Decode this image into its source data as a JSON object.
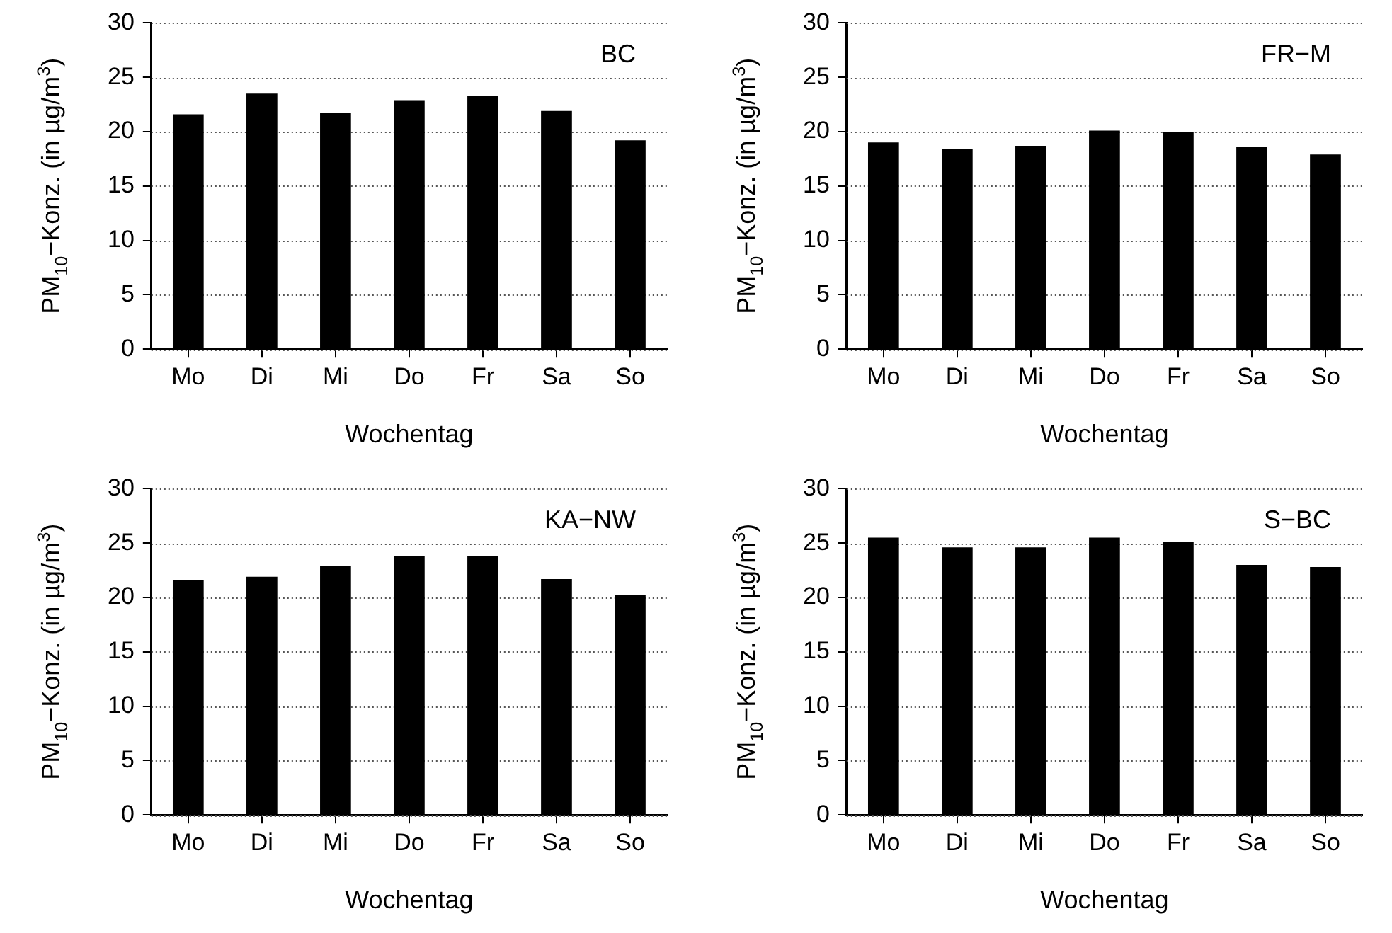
{
  "chart_data": [
    {
      "type": "bar",
      "categories": [
        "Mo",
        "Di",
        "Mi",
        "Do",
        "Fr",
        "Sa",
        "So"
      ],
      "values": [
        21.6,
        23.5,
        21.7,
        22.9,
        23.3,
        21.9,
        19.2
      ],
      "color": "#000000",
      "xlabel": "Wochentag",
      "ylabel": "PM$_{10}$−Konz. (in µg/m$^{3}$)",
      "ylim": [
        0,
        30
      ],
      "yticks": [
        0,
        5,
        10,
        15,
        20,
        25,
        30
      ],
      "grid": "y",
      "legend": false,
      "annotations": [
        "BC"
      ]
    },
    {
      "type": "bar",
      "categories": [
        "Mo",
        "Di",
        "Mi",
        "Do",
        "Fr",
        "Sa",
        "So"
      ],
      "values": [
        19.0,
        18.4,
        18.7,
        20.1,
        20.0,
        18.6,
        17.9
      ],
      "color": "#000000",
      "xlabel": "Wochentag",
      "ylabel": "PM$_{10}$−Konz. (in µg/m$^{3}$)",
      "ylim": [
        0,
        30
      ],
      "yticks": [
        0,
        5,
        10,
        15,
        20,
        25,
        30
      ],
      "grid": "y",
      "legend": false,
      "annotations": [
        "FR−M"
      ]
    },
    {
      "type": "bar",
      "categories": [
        "Mo",
        "Di",
        "Mi",
        "Do",
        "Fr",
        "Sa",
        "So"
      ],
      "values": [
        21.6,
        21.9,
        22.9,
        23.8,
        23.8,
        21.7,
        20.2
      ],
      "color": "#000000",
      "xlabel": "Wochentag",
      "ylabel": "PM$_{10}$−Konz. (in µg/m$^{3}$)",
      "ylim": [
        0,
        30
      ],
      "yticks": [
        0,
        5,
        10,
        15,
        20,
        25,
        30
      ],
      "grid": "y",
      "legend": false,
      "annotations": [
        "KA−NW"
      ]
    },
    {
      "type": "bar",
      "categories": [
        "Mo",
        "Di",
        "Mi",
        "Do",
        "Fr",
        "Sa",
        "So"
      ],
      "values": [
        25.5,
        24.6,
        24.6,
        25.5,
        25.1,
        23.0,
        22.8
      ],
      "color": "#000000",
      "xlabel": "Wochentag",
      "ylabel": "PM$_{10}$−Konz. (in µg/m$^{3}$)",
      "ylim": [
        0,
        30
      ],
      "yticks": [
        0,
        5,
        10,
        15,
        20,
        25,
        30
      ],
      "grid": "y",
      "legend": false,
      "annotations": [
        "S−BC"
      ]
    }
  ]
}
